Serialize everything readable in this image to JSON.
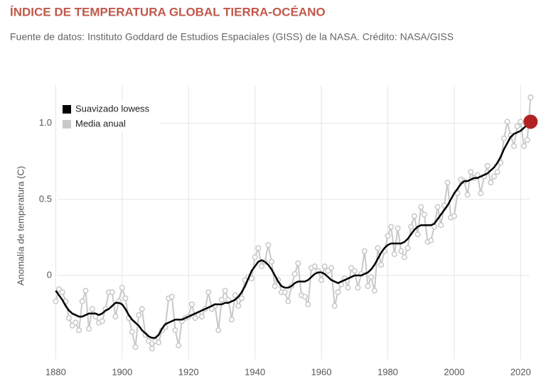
{
  "chart_data": {
    "type": "line",
    "title": "ÍNDICE DE TEMPERATURA GLOBAL TIERRA-OCÉANO",
    "subtitle": "Fuente de datos: Instituto Goddard de Estudios Espaciales (GISS) de la NASA. Crédito: NASA/GISS",
    "y_label": "Anomalía de temperatura (C)",
    "x": [
      1880,
      1881,
      1882,
      1883,
      1884,
      1885,
      1886,
      1887,
      1888,
      1889,
      1890,
      1891,
      1892,
      1893,
      1894,
      1895,
      1896,
      1897,
      1898,
      1899,
      1900,
      1901,
      1902,
      1903,
      1904,
      1905,
      1906,
      1907,
      1908,
      1909,
      1910,
      1911,
      1912,
      1913,
      1914,
      1915,
      1916,
      1917,
      1918,
      1919,
      1920,
      1921,
      1922,
      1923,
      1924,
      1925,
      1926,
      1927,
      1928,
      1929,
      1930,
      1931,
      1932,
      1933,
      1934,
      1935,
      1936,
      1937,
      1938,
      1939,
      1940,
      1941,
      1942,
      1943,
      1944,
      1945,
      1946,
      1947,
      1948,
      1949,
      1950,
      1951,
      1952,
      1953,
      1954,
      1955,
      1956,
      1957,
      1958,
      1959,
      1960,
      1961,
      1962,
      1963,
      1964,
      1965,
      1966,
      1967,
      1968,
      1969,
      1970,
      1971,
      1972,
      1973,
      1974,
      1975,
      1976,
      1977,
      1978,
      1979,
      1980,
      1981,
      1982,
      1983,
      1984,
      1985,
      1986,
      1987,
      1988,
      1989,
      1990,
      1991,
      1992,
      1993,
      1994,
      1995,
      1996,
      1997,
      1998,
      1999,
      2000,
      2001,
      2002,
      2003,
      2004,
      2005,
      2006,
      2007,
      2008,
      2009,
      2010,
      2011,
      2012,
      2013,
      2014,
      2015,
      2016,
      2017,
      2018,
      2019,
      2020,
      2021,
      2022,
      2023
    ],
    "series": [
      {
        "name": "Media anual",
        "color": "#c8c8c8",
        "values": [
          -0.17,
          -0.09,
          -0.11,
          -0.17,
          -0.28,
          -0.33,
          -0.31,
          -0.36,
          -0.17,
          -0.1,
          -0.35,
          -0.22,
          -0.27,
          -0.31,
          -0.3,
          -0.22,
          -0.11,
          -0.11,
          -0.27,
          -0.17,
          -0.08,
          -0.15,
          -0.28,
          -0.37,
          -0.47,
          -0.26,
          -0.22,
          -0.39,
          -0.43,
          -0.48,
          -0.43,
          -0.44,
          -0.36,
          -0.34,
          -0.15,
          -0.14,
          -0.36,
          -0.46,
          -0.3,
          -0.28,
          -0.27,
          -0.19,
          -0.28,
          -0.26,
          -0.27,
          -0.22,
          -0.11,
          -0.22,
          -0.2,
          -0.36,
          -0.16,
          -0.1,
          -0.16,
          -0.29,
          -0.13,
          -0.2,
          -0.15,
          -0.03,
          -0.01,
          -0.02,
          0.12,
          0.18,
          0.06,
          0.09,
          0.2,
          0.09,
          -0.07,
          -0.03,
          -0.11,
          -0.11,
          -0.17,
          -0.07,
          0.01,
          0.08,
          -0.13,
          -0.14,
          -0.19,
          0.05,
          0.06,
          0.03,
          -0.03,
          0.06,
          0.03,
          0.05,
          -0.2,
          -0.11,
          -0.06,
          -0.02,
          -0.08,
          0.05,
          0.03,
          -0.08,
          0.01,
          0.16,
          -0.07,
          -0.01,
          -0.1,
          0.18,
          0.07,
          0.16,
          0.26,
          0.32,
          0.14,
          0.31,
          0.16,
          0.12,
          0.18,
          0.32,
          0.39,
          0.27,
          0.45,
          0.4,
          0.22,
          0.23,
          0.32,
          0.45,
          0.33,
          0.46,
          0.61,
          0.38,
          0.39,
          0.54,
          0.63,
          0.62,
          0.53,
          0.68,
          0.64,
          0.66,
          0.54,
          0.65,
          0.72,
          0.61,
          0.65,
          0.68,
          0.74,
          0.9,
          1.01,
          0.92,
          0.85,
          0.98,
          1.01,
          0.85,
          0.89,
          1.17
        ]
      },
      {
        "name": "Suavizado lowess",
        "color": "#000000",
        "values": [
          -0.1,
          -0.13,
          -0.16,
          -0.2,
          -0.23,
          -0.25,
          -0.26,
          -0.27,
          -0.27,
          -0.26,
          -0.25,
          -0.25,
          -0.25,
          -0.26,
          -0.25,
          -0.23,
          -0.22,
          -0.2,
          -0.18,
          -0.18,
          -0.19,
          -0.22,
          -0.26,
          -0.29,
          -0.31,
          -0.33,
          -0.36,
          -0.38,
          -0.4,
          -0.41,
          -0.41,
          -0.39,
          -0.35,
          -0.32,
          -0.31,
          -0.3,
          -0.29,
          -0.29,
          -0.29,
          -0.28,
          -0.27,
          -0.26,
          -0.25,
          -0.24,
          -0.23,
          -0.22,
          -0.21,
          -0.2,
          -0.19,
          -0.19,
          -0.19,
          -0.18,
          -0.18,
          -0.17,
          -0.16,
          -0.14,
          -0.11,
          -0.07,
          -0.02,
          0.03,
          0.06,
          0.09,
          0.1,
          0.09,
          0.07,
          0.04,
          0.0,
          -0.04,
          -0.07,
          -0.08,
          -0.08,
          -0.07,
          -0.05,
          -0.04,
          -0.04,
          -0.04,
          -0.03,
          -0.01,
          0.01,
          0.02,
          0.02,
          0.01,
          -0.01,
          -0.03,
          -0.04,
          -0.05,
          -0.04,
          -0.03,
          -0.02,
          -0.01,
          0.0,
          0.0,
          0.0,
          0.01,
          0.02,
          0.04,
          0.07,
          0.11,
          0.15,
          0.18,
          0.2,
          0.21,
          0.21,
          0.21,
          0.21,
          0.22,
          0.24,
          0.27,
          0.3,
          0.32,
          0.33,
          0.33,
          0.33,
          0.33,
          0.34,
          0.37,
          0.4,
          0.43,
          0.46,
          0.5,
          0.54,
          0.57,
          0.6,
          0.62,
          0.62,
          0.63,
          0.64,
          0.64,
          0.65,
          0.66,
          0.67,
          0.69,
          0.71,
          0.74,
          0.78,
          0.83,
          0.87,
          0.91,
          0.93,
          0.94,
          0.95,
          0.97,
          0.99,
          1.01
        ]
      }
    ],
    "highlight_color": "#b22222",
    "xlim": [
      1875,
      2027
    ],
    "xticks": [
      1880,
      1900,
      1920,
      1940,
      1960,
      1980,
      2000,
      2020
    ],
    "ylim": [
      -0.55,
      1.25
    ],
    "yticks": [
      0,
      0.5,
      {
        "value": 1,
        "label": "1.0"
      }
    ],
    "grid": true,
    "legend": "top-left"
  }
}
